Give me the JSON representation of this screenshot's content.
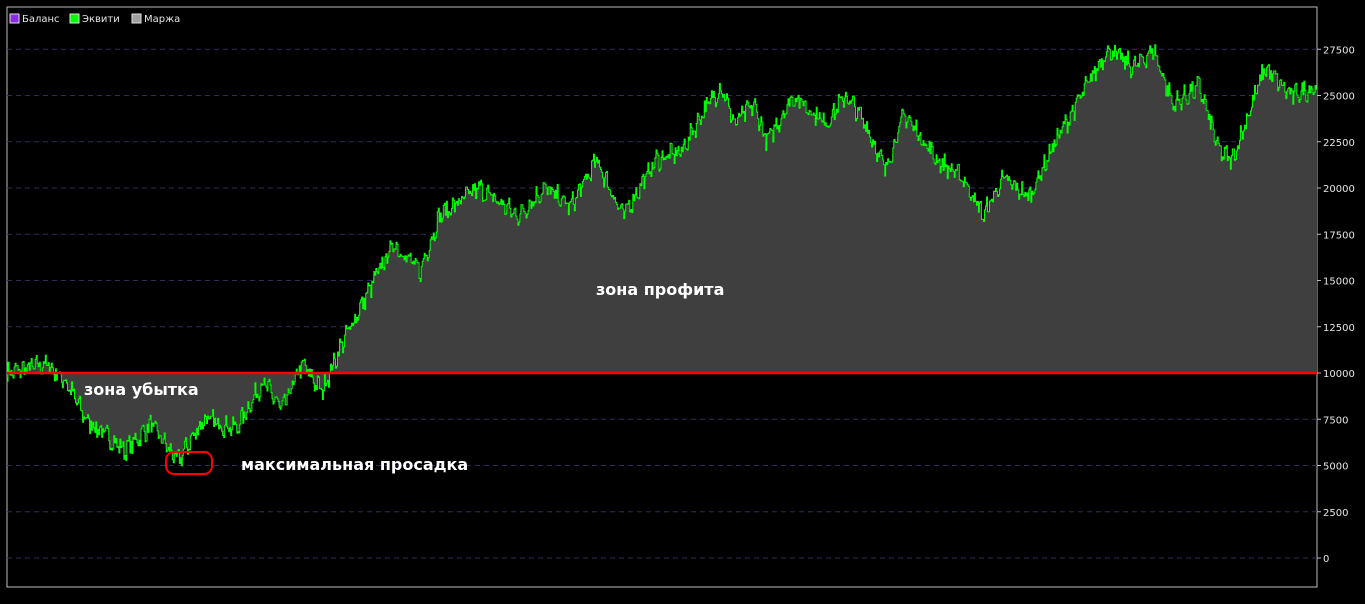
{
  "chart_data": {
    "type": "area",
    "legend": [
      {
        "label": "Баланс",
        "color": "#8a2be2"
      },
      {
        "label": "Эквити",
        "color": "#00ff00"
      },
      {
        "label": "Маржа",
        "color": "#a0a0a0"
      }
    ],
    "legend_position": "top-left",
    "yaxis": {
      "position": "right",
      "ylim": [
        0,
        28500
      ],
      "ticks": [
        0,
        2500,
        5000,
        7500,
        10000,
        12500,
        15000,
        17500,
        20000,
        22500,
        25000,
        27500
      ],
      "tick_labels": [
        "0",
        "2500",
        "5000",
        "7500",
        "10000",
        "12500",
        "15000",
        "17500",
        "20000",
        "22500",
        "25000",
        "27500"
      ]
    },
    "grid": true,
    "baseline": {
      "value": 10000,
      "color": "#ff0000"
    },
    "equity_keypoints": [
      [
        0,
        10000
      ],
      [
        3,
        10500
      ],
      [
        4.5,
        9500
      ],
      [
        6,
        7500
      ],
      [
        9,
        5800
      ],
      [
        11,
        7200
      ],
      [
        13,
        5200
      ],
      [
        15,
        7500
      ],
      [
        17.5,
        7000
      ],
      [
        19.5,
        9500
      ],
      [
        21,
        8000
      ],
      [
        22.5,
        10500
      ],
      [
        24,
        9000
      ],
      [
        25.5,
        11500
      ],
      [
        28,
        15000
      ],
      [
        29.5,
        17000
      ],
      [
        31.5,
        15500
      ],
      [
        33,
        18500
      ],
      [
        36,
        20000
      ],
      [
        39,
        18500
      ],
      [
        41,
        20000
      ],
      [
        43,
        19000
      ],
      [
        45,
        21500
      ],
      [
        47,
        18500
      ],
      [
        49.5,
        21500
      ],
      [
        51.5,
        22000
      ],
      [
        53,
        24000
      ],
      [
        54.5,
        25500
      ],
      [
        55.5,
        23500
      ],
      [
        57,
        24500
      ],
      [
        58,
        22500
      ],
      [
        60,
        25000
      ],
      [
        62.5,
        23500
      ],
      [
        64,
        25000
      ],
      [
        65.5,
        23500
      ],
      [
        67,
        21000
      ],
      [
        68.5,
        24000
      ],
      [
        71,
        21500
      ],
      [
        73,
        20500
      ],
      [
        74.5,
        18500
      ],
      [
        76,
        20500
      ],
      [
        78,
        19500
      ],
      [
        80,
        22500
      ],
      [
        82,
        25000
      ],
      [
        84,
        27500
      ],
      [
        86,
        26500
      ],
      [
        87.5,
        27500
      ],
      [
        89,
        24500
      ],
      [
        91,
        25500
      ],
      [
        92.5,
        22000
      ],
      [
        93.5,
        21500
      ],
      [
        94.5,
        23500
      ],
      [
        96,
        26500
      ],
      [
        98,
        25000
      ],
      [
        100,
        25500
      ]
    ],
    "margin_range": [
      0,
      2500
    ],
    "annotations": [
      {
        "text": "зона профита"
      },
      {
        "text": "зона убытка"
      },
      {
        "text": "максимальная просадка"
      }
    ],
    "drawdown_marker_color": "#ff0000"
  }
}
